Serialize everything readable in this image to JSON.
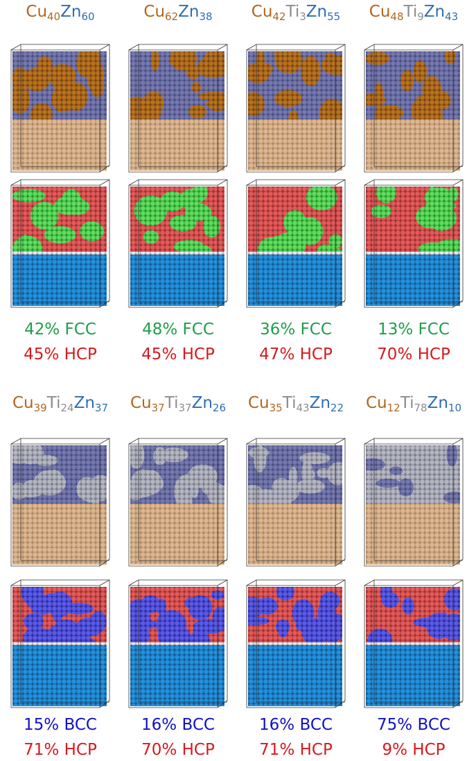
{
  "panels": [
    {
      "formula": [
        {
          "element": "Cu",
          "count": "40",
          "color": "#b0651f"
        },
        {
          "element": "Zn",
          "count": "60",
          "color": "#2e6db4"
        }
      ],
      "phases": [
        {
          "text": "42% FCC",
          "color": "#1e9e4a"
        },
        {
          "text": "45% HCP",
          "color": "#d7191c"
        }
      ]
    },
    {
      "formula": [
        {
          "element": "Cu",
          "count": "62",
          "color": "#b0651f"
        },
        {
          "element": "Zn",
          "count": "38",
          "color": "#2e6db4"
        }
      ],
      "phases": [
        {
          "text": "48% FCC",
          "color": "#1e9e4a"
        },
        {
          "text": "45% HCP",
          "color": "#d7191c"
        }
      ]
    },
    {
      "formula": [
        {
          "element": "Cu",
          "count": "42",
          "color": "#b0651f"
        },
        {
          "element": "Ti",
          "count": "3",
          "color": "#8c8c8c"
        },
        {
          "element": "Zn",
          "count": "55",
          "color": "#2e6db4"
        }
      ],
      "phases": [
        {
          "text": "36% FCC",
          "color": "#1e9e4a"
        },
        {
          "text": "47% HCP",
          "color": "#d7191c"
        }
      ]
    },
    {
      "formula": [
        {
          "element": "Cu",
          "count": "48",
          "color": "#b0651f"
        },
        {
          "element": "Ti",
          "count": "9",
          "color": "#8c8c8c"
        },
        {
          "element": "Zn",
          "count": "43",
          "color": "#2e6db4"
        }
      ],
      "phases": [
        {
          "text": "13% FCC",
          "color": "#1e9e4a"
        },
        {
          "text": "70% HCP",
          "color": "#d7191c"
        }
      ]
    },
    {
      "formula": [
        {
          "element": "Cu",
          "count": "39",
          "color": "#b0651f"
        },
        {
          "element": "Ti",
          "count": "24",
          "color": "#8c8c8c"
        },
        {
          "element": "Zn",
          "count": "37",
          "color": "#2e6db4"
        }
      ],
      "phases": [
        {
          "text": "15% BCC",
          "color": "#1010c8"
        },
        {
          "text": "71% HCP",
          "color": "#d7191c"
        }
      ]
    },
    {
      "formula": [
        {
          "element": "Cu",
          "count": "37",
          "color": "#b0651f"
        },
        {
          "element": "Ti",
          "count": "37",
          "color": "#8c8c8c"
        },
        {
          "element": "Zn",
          "count": "26",
          "color": "#2e6db4"
        }
      ],
      "phases": [
        {
          "text": "16% BCC",
          "color": "#1010c8"
        },
        {
          "text": "70% HCP",
          "color": "#d7191c"
        }
      ]
    },
    {
      "formula": [
        {
          "element": "Cu",
          "count": "35",
          "color": "#b0651f"
        },
        {
          "element": "Ti",
          "count": "43",
          "color": "#8c8c8c"
        },
        {
          "element": "Zn",
          "count": "22",
          "color": "#2e6db4"
        }
      ],
      "phases": [
        {
          "text": "16% BCC",
          "color": "#1010c8"
        },
        {
          "text": "71% HCP",
          "color": "#d7191c"
        }
      ]
    },
    {
      "formula": [
        {
          "element": "Cu",
          "count": "12",
          "color": "#b0651f"
        },
        {
          "element": "Ti",
          "count": "78",
          "color": "#8c8c8c"
        },
        {
          "element": "Zn",
          "count": "10",
          "color": "#2e6db4"
        }
      ],
      "phases": [
        {
          "text": "75% BCC",
          "color": "#1010c8"
        },
        {
          "text": "9% HCP",
          "color": "#d7191c"
        }
      ]
    }
  ]
}
